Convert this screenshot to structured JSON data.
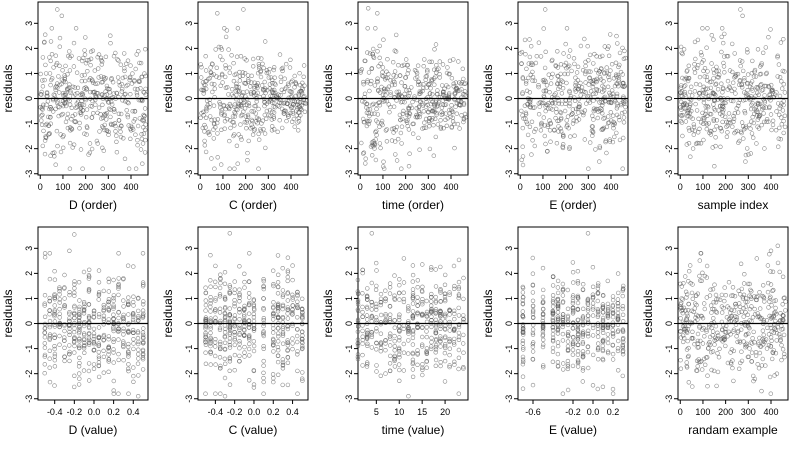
{
  "figure": {
    "background": "#ffffff",
    "point_color": "#555555",
    "line_color": "#000000"
  },
  "chart_data": [
    {
      "type": "scatter",
      "xlabel": "D (order)",
      "ylabel": "residuals",
      "xticks": [
        "0",
        "100",
        "200",
        "300",
        "400"
      ],
      "yticks": [
        "-3",
        "-2",
        "-1",
        "0",
        "1",
        "2",
        "3"
      ],
      "xlim": [
        -10,
        475
      ],
      "ylim": [
        -3.05,
        3.85
      ],
      "reference_line_y": 0,
      "point_spread": "uniform",
      "n_points": 450,
      "highlight_points": [
        {
          "x": 75,
          "y": 3.55
        },
        {
          "x": 95,
          "y": 3.3
        },
        {
          "x": 450,
          "y": -2.6
        },
        {
          "x": 462,
          "y": -2.15
        }
      ]
    },
    {
      "type": "scatter",
      "xlabel": "C (order)",
      "ylabel": "residuals",
      "xticks": [
        "0",
        "100",
        "200",
        "300",
        "400"
      ],
      "yticks": [
        "-3",
        "-2",
        "-1",
        "0",
        "1",
        "2",
        "3"
      ],
      "xlim": [
        -10,
        475
      ],
      "ylim": [
        -3.05,
        3.85
      ],
      "reference_line_y": 0,
      "point_spread": "funnel",
      "n_points": 450,
      "highlight_points": [
        {
          "x": 190,
          "y": 3.55
        },
        {
          "x": 75,
          "y": 3.4
        },
        {
          "x": 165,
          "y": -2.6
        }
      ]
    },
    {
      "type": "scatter",
      "xlabel": "time (order)",
      "ylabel": "residuals",
      "xticks": [
        "0",
        "100",
        "200",
        "300",
        "400"
      ],
      "yticks": [
        "-3",
        "-2",
        "-1",
        "0",
        "1",
        "2",
        "3"
      ],
      "xlim": [
        -10,
        475
      ],
      "ylim": [
        -3.05,
        3.85
      ],
      "reference_line_y": 0,
      "point_spread": "funnel",
      "n_points": 450,
      "highlight_points": [
        {
          "x": 35,
          "y": 3.6
        },
        {
          "x": 75,
          "y": 3.4
        },
        {
          "x": 215,
          "y": -2.7
        }
      ]
    },
    {
      "type": "scatter",
      "xlabel": "E (order)",
      "ylabel": "residuals",
      "xticks": [
        "0",
        "100",
        "200",
        "300",
        "400"
      ],
      "yticks": [
        "-3",
        "-2",
        "-1",
        "0",
        "1",
        "2",
        "3"
      ],
      "xlim": [
        -10,
        475
      ],
      "ylim": [
        -3.05,
        3.85
      ],
      "reference_line_y": 0,
      "point_spread": "uniform",
      "n_points": 450,
      "highlight_points": [
        {
          "x": 110,
          "y": 3.55
        },
        {
          "x": 12,
          "y": -2.65
        }
      ]
    },
    {
      "type": "scatter",
      "xlabel": "sample index",
      "ylabel": "residuals",
      "xticks": [
        "0",
        "100",
        "200",
        "300",
        "400"
      ],
      "yticks": [
        "-3",
        "-2",
        "-1",
        "0",
        "1",
        "2",
        "3"
      ],
      "xlim": [
        -10,
        475
      ],
      "ylim": [
        -3.05,
        3.85
      ],
      "reference_line_y": 0,
      "point_spread": "uniform",
      "n_points": 450,
      "highlight_points": [
        {
          "x": 265,
          "y": 3.55
        },
        {
          "x": 275,
          "y": 3.3
        },
        {
          "x": 150,
          "y": -2.7
        }
      ]
    },
    {
      "type": "scatter",
      "xlabel": "D (value)",
      "ylabel": "residuals",
      "xticks": [
        "-0.4",
        "-0.2",
        "0.0",
        "0.2",
        "0.4"
      ],
      "yticks": [
        "-3",
        "-2",
        "-1",
        "0",
        "1",
        "2",
        "3"
      ],
      "xlim": [
        -0.57,
        0.55
      ],
      "ylim": [
        -3.05,
        3.85
      ],
      "reference_line_y": 0,
      "point_spread": "columns",
      "columns": [
        -0.5,
        -0.45,
        -0.4,
        -0.35,
        -0.3,
        -0.25,
        -0.2,
        -0.15,
        -0.1,
        -0.05,
        0.0,
        0.05,
        0.1,
        0.15,
        0.2,
        0.25,
        0.3,
        0.35,
        0.4,
        0.45,
        0.5
      ],
      "n_points": 450,
      "highlight_points": [
        {
          "x": -0.2,
          "y": 3.55
        },
        {
          "x": -0.25,
          "y": 2.9
        },
        {
          "x": 0.45,
          "y": -2.9
        }
      ]
    },
    {
      "type": "scatter",
      "xlabel": "C (value)",
      "ylabel": "residuals",
      "xticks": [
        "-0.4",
        "-0.2",
        "0.0",
        "0.2",
        "0.4"
      ],
      "yticks": [
        "-3",
        "-2",
        "-1",
        "0",
        "1",
        "2",
        "3"
      ],
      "xlim": [
        -0.58,
        0.56
      ],
      "ylim": [
        -3.05,
        3.85
      ],
      "reference_line_y": 0,
      "point_spread": "columns",
      "columns": [
        -0.5,
        -0.45,
        -0.4,
        -0.35,
        -0.3,
        -0.25,
        -0.2,
        -0.15,
        -0.1,
        -0.05,
        0.0,
        0.1,
        0.2,
        0.25,
        0.3,
        0.35,
        0.4,
        0.45,
        0.5
      ],
      "n_points": 450,
      "highlight_points": [
        {
          "x": -0.25,
          "y": 3.6
        },
        {
          "x": -0.3,
          "y": -2.9
        }
      ]
    },
    {
      "type": "scatter",
      "xlabel": "time (value)",
      "ylabel": "residuals",
      "xticks": [
        "5",
        "10",
        "15",
        "20"
      ],
      "yticks": [
        "-3",
        "-2",
        "-1",
        "0",
        "1",
        "2",
        "3"
      ],
      "xlim": [
        1,
        25
      ],
      "ylim": [
        -3.05,
        3.85
      ],
      "reference_line_y": 0,
      "point_spread": "columns",
      "columns": [
        1,
        2,
        3,
        4,
        5,
        6,
        7,
        8,
        9,
        10,
        11,
        12,
        13,
        14,
        15,
        16,
        17,
        18,
        19,
        20,
        21,
        22,
        23,
        24
      ],
      "n_points": 450,
      "highlight_points": [
        {
          "x": 4,
          "y": 3.6
        },
        {
          "x": 12,
          "y": -2.9
        }
      ]
    },
    {
      "type": "scatter",
      "xlabel": "E (value)",
      "ylabel": "residuals",
      "xticks": [
        "-0.6",
        "-0.2",
        "0.0",
        "0.2"
      ],
      "yticks": [
        "-3",
        "-2",
        "-1",
        "0",
        "1",
        "2",
        "3"
      ],
      "xlim": [
        -0.75,
        0.35
      ],
      "ylim": [
        -3.05,
        3.85
      ],
      "reference_line_y": 0,
      "point_spread": "columns",
      "columns": [
        -0.7,
        -0.6,
        -0.5,
        -0.4,
        -0.35,
        -0.3,
        -0.25,
        -0.2,
        -0.15,
        -0.1,
        -0.05,
        0.0,
        0.05,
        0.1,
        0.15,
        0.2,
        0.25,
        0.3
      ],
      "n_points": 450,
      "highlight_points": [
        {
          "x": -0.05,
          "y": 3.6
        },
        {
          "x": -0.7,
          "y": -2.6
        }
      ]
    },
    {
      "type": "scatter",
      "xlabel": "randam example",
      "ylabel": "residuals",
      "xticks": [
        "0",
        "100",
        "200",
        "300",
        "400"
      ],
      "yticks": [
        "-3",
        "-2",
        "-1",
        "0",
        "1",
        "2",
        "3"
      ],
      "xlim": [
        -10,
        475
      ],
      "ylim": [
        -3.05,
        3.85
      ],
      "reference_line_y": 0,
      "point_spread": "uniform",
      "n_points": 450,
      "highlight_points": [
        {
          "x": 430,
          "y": 3.1
        },
        {
          "x": 400,
          "y": 2.9
        },
        {
          "x": 120,
          "y": -2.5
        }
      ]
    }
  ]
}
